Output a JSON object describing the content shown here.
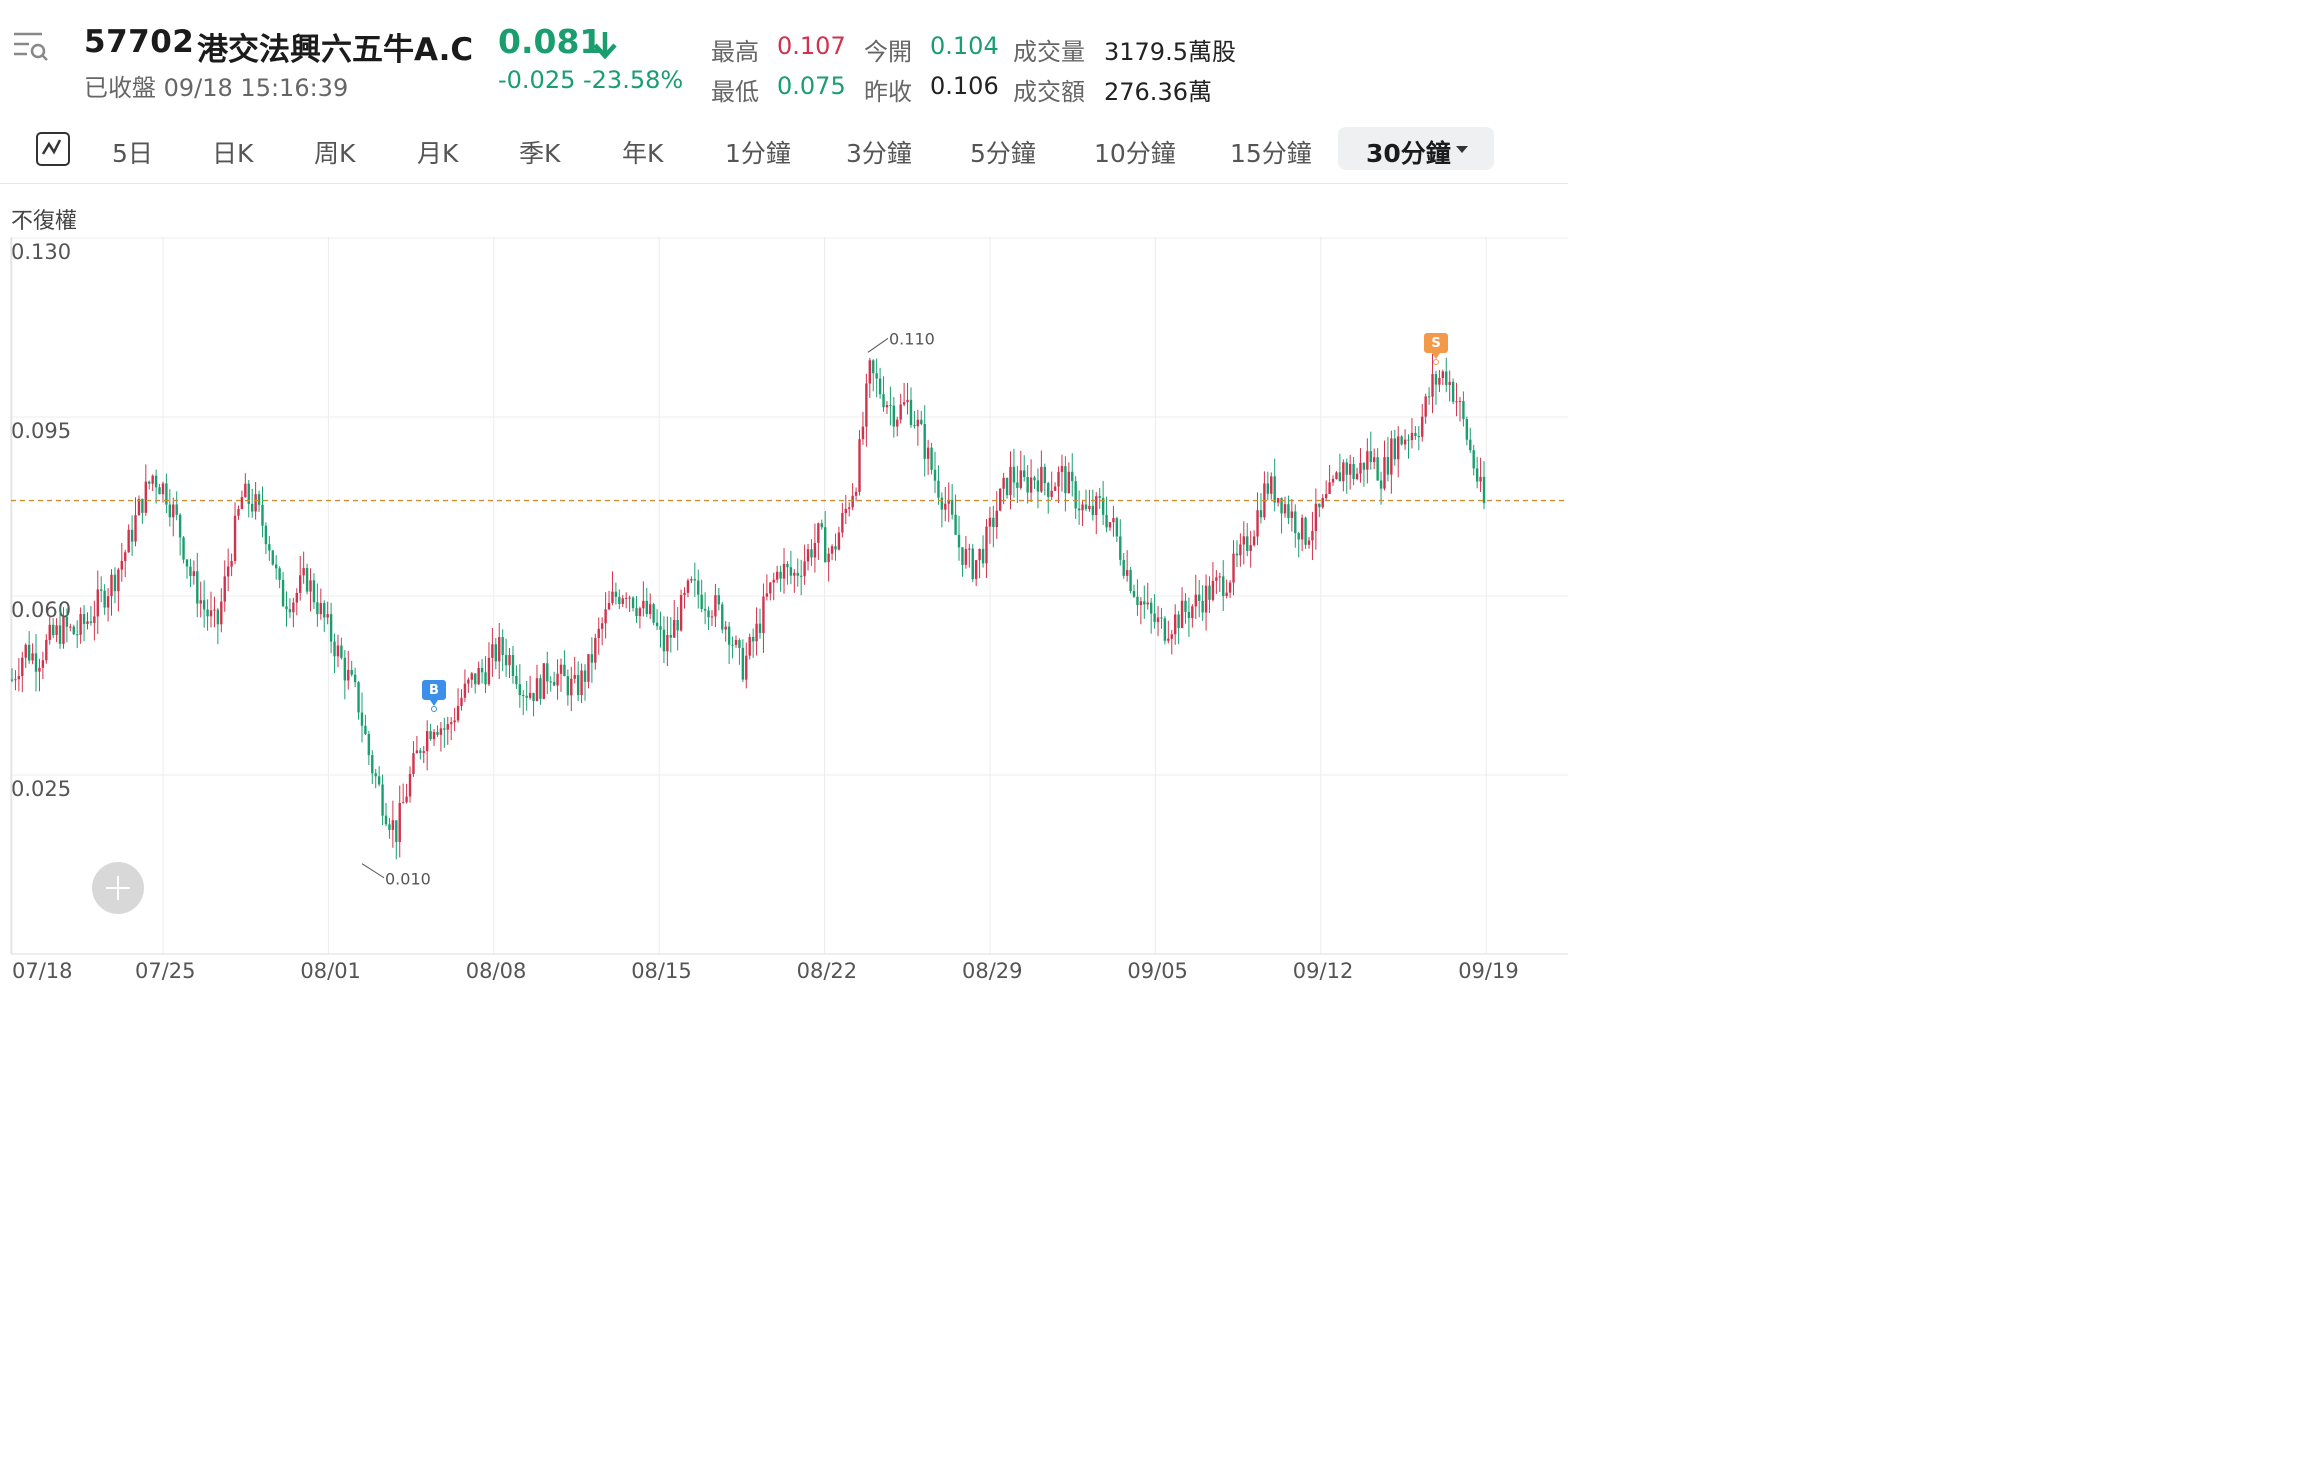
{
  "header": {
    "code": "57702",
    "name": "港交法興六五牛A.C",
    "price": "0.081",
    "change": "-0.025 -23.58%",
    "status": "已收盤 09/18 15:16:39",
    "stats": [
      {
        "label": "最高",
        "value": "0.107",
        "color": "#d1324d"
      },
      {
        "label": "今開",
        "value": "0.104",
        "color": "#1a9e6f"
      },
      {
        "label": "成交量",
        "value": "3179.5萬股",
        "color": "#222222"
      },
      {
        "label": "最低",
        "value": "0.075",
        "color": "#1a9e6f"
      },
      {
        "label": "昨收",
        "value": "0.106",
        "color": "#222222"
      },
      {
        "label": "成交額",
        "value": "276.36萬",
        "color": "#222222"
      }
    ]
  },
  "toolbar": {
    "tabs": [
      "5日",
      "日K",
      "周K",
      "月K",
      "季K",
      "年K",
      "1分鐘",
      "3分鐘",
      "5分鐘",
      "10分鐘",
      "15分鐘"
    ],
    "active": "30分鐘"
  },
  "chart": {
    "adjust_label": "不復權",
    "y_ticks": [
      "0.130",
      "0.095",
      "0.060",
      "0.025"
    ],
    "x_ticks": [
      "07/18",
      "07/25",
      "08/01",
      "08/08",
      "08/15",
      "08/22",
      "08/29",
      "09/05",
      "09/12",
      "09/19"
    ],
    "high_annotation": "0.110",
    "low_annotation": "0.010",
    "buy_marker": "B",
    "sell_marker": "S",
    "ref_price": 0.081,
    "colors": {
      "up": "#d1324d",
      "down": "#1a9e6f",
      "ref_line": "#c8902f",
      "buy": "#3b8fe8",
      "sell": "#f39a4a"
    }
  },
  "chart_data": {
    "type": "candlestick",
    "interval": "30分鐘",
    "ylim": [
      0.0,
      0.13
    ],
    "y_ticks": [
      0.13,
      0.095,
      0.06,
      0.025
    ],
    "x_ticks": [
      "07/18",
      "07/25",
      "08/01",
      "08/08",
      "08/15",
      "08/22",
      "08/29",
      "09/05",
      "09/12",
      "09/19"
    ],
    "close_path": [
      0.046,
      0.052,
      0.05,
      0.054,
      0.056,
      0.055,
      0.058,
      0.062,
      0.066,
      0.072,
      0.08,
      0.086,
      0.083,
      0.076,
      0.066,
      0.06,
      0.056,
      0.07,
      0.082,
      0.08,
      0.074,
      0.062,
      0.062,
      0.066,
      0.06,
      0.054,
      0.048,
      0.042,
      0.03,
      0.022,
      0.016,
      0.026,
      0.034,
      0.038,
      0.036,
      0.042,
      0.046,
      0.048,
      0.052,
      0.05,
      0.044,
      0.044,
      0.048,
      0.046,
      0.044,
      0.048,
      0.056,
      0.062,
      0.064,
      0.06,
      0.058,
      0.052,
      0.058,
      0.064,
      0.062,
      0.06,
      0.056,
      0.048,
      0.054,
      0.062,
      0.068,
      0.066,
      0.07,
      0.074,
      0.07,
      0.078,
      0.086,
      0.106,
      0.102,
      0.098,
      0.1,
      0.094,
      0.086,
      0.08,
      0.072,
      0.068,
      0.072,
      0.08,
      0.086,
      0.084,
      0.086,
      0.084,
      0.086,
      0.082,
      0.078,
      0.08,
      0.076,
      0.068,
      0.062,
      0.058,
      0.056,
      0.058,
      0.06,
      0.062,
      0.064,
      0.066,
      0.07,
      0.076,
      0.084,
      0.082,
      0.078,
      0.074,
      0.078,
      0.082,
      0.088,
      0.086,
      0.09,
      0.086,
      0.092,
      0.094,
      0.096,
      0.104,
      0.106,
      0.1,
      0.09,
      0.08
    ],
    "high": 0.11,
    "low": 0.01,
    "reference_line": 0.081,
    "markers": [
      {
        "type": "B",
        "date": "08/05"
      },
      {
        "type": "S",
        "date": "09/17"
      }
    ]
  }
}
